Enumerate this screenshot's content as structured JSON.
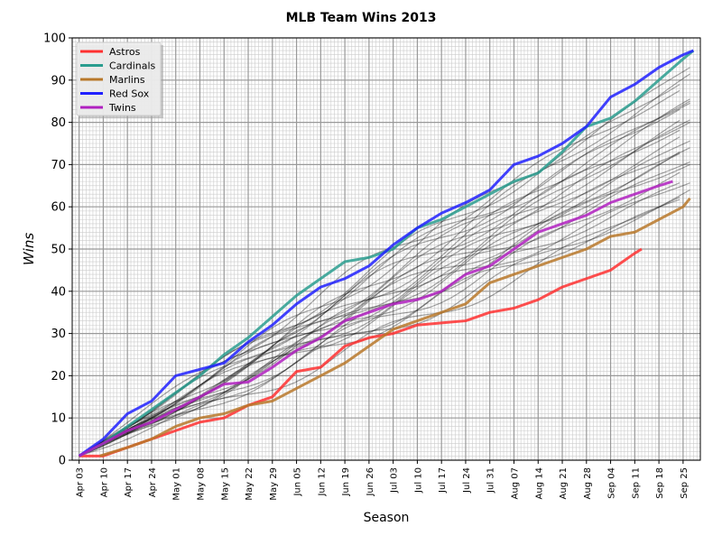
{
  "chart_data": {
    "type": "line",
    "title": "MLB Team Wins 2013",
    "xlabel": "Season",
    "ylabel": "Wins",
    "ylim": [
      0,
      100
    ],
    "xlim_days_from_apr03": [
      -2,
      180
    ],
    "x_tick_labels": [
      "Apr 03",
      "Apr 10",
      "Apr 17",
      "Apr 24",
      "May 01",
      "May 08",
      "May 15",
      "May 22",
      "May 29",
      "Jun 05",
      "Jun 12",
      "Jun 19",
      "Jun 26",
      "Jul 03",
      "Jul 10",
      "Jul 17",
      "Jul 24",
      "Jul 31",
      "Aug 07",
      "Aug 14",
      "Aug 21",
      "Aug 28",
      "Sep 04",
      "Sep 11",
      "Sep 18",
      "Sep 25"
    ],
    "y_ticks": [
      0,
      10,
      20,
      30,
      40,
      50,
      60,
      70,
      80,
      90,
      100
    ],
    "grid": true,
    "legend_position": "top-left",
    "series": [
      {
        "name": "Astros",
        "color": "#ff3030",
        "points": [
          [
            0,
            1
          ],
          [
            7,
            1
          ],
          [
            14,
            3
          ],
          [
            21,
            5
          ],
          [
            28,
            7
          ],
          [
            35,
            9
          ],
          [
            42,
            10
          ],
          [
            49,
            13
          ],
          [
            56,
            15
          ],
          [
            63,
            21
          ],
          [
            70,
            22
          ],
          [
            77,
            27
          ],
          [
            84,
            29
          ],
          [
            91,
            30
          ],
          [
            98,
            32
          ],
          [
            105,
            32.5
          ],
          [
            112,
            33
          ],
          [
            119,
            35
          ],
          [
            126,
            36
          ],
          [
            133,
            38
          ],
          [
            140,
            41
          ],
          [
            147,
            43
          ],
          [
            154,
            45
          ],
          [
            161,
            49
          ],
          [
            163,
            50
          ]
        ]
      },
      {
        "name": "Cardinals",
        "color": "#2a9d8f",
        "points": [
          [
            0,
            1
          ],
          [
            7,
            4
          ],
          [
            14,
            8
          ],
          [
            21,
            12
          ],
          [
            28,
            16
          ],
          [
            35,
            20
          ],
          [
            42,
            25
          ],
          [
            49,
            29
          ],
          [
            56,
            34
          ],
          [
            63,
            39
          ],
          [
            70,
            43
          ],
          [
            77,
            47
          ],
          [
            84,
            48
          ],
          [
            91,
            50
          ],
          [
            98,
            55
          ],
          [
            105,
            57
          ],
          [
            112,
            60
          ],
          [
            119,
            63
          ],
          [
            126,
            66
          ],
          [
            133,
            68
          ],
          [
            140,
            73
          ],
          [
            147,
            79
          ],
          [
            154,
            81
          ],
          [
            161,
            85
          ],
          [
            168,
            90
          ],
          [
            175,
            95
          ],
          [
            178,
            97
          ]
        ]
      },
      {
        "name": "Marlins",
        "color": "#b8782a",
        "points": [
          [
            6,
            1
          ],
          [
            14,
            3
          ],
          [
            21,
            5
          ],
          [
            28,
            8
          ],
          [
            35,
            10
          ],
          [
            42,
            11
          ],
          [
            49,
            13
          ],
          [
            56,
            14
          ],
          [
            63,
            17
          ],
          [
            70,
            20
          ],
          [
            77,
            23
          ],
          [
            84,
            27
          ],
          [
            91,
            31
          ],
          [
            98,
            33
          ],
          [
            105,
            35
          ],
          [
            112,
            37
          ],
          [
            119,
            42
          ],
          [
            126,
            44
          ],
          [
            133,
            46
          ],
          [
            140,
            48
          ],
          [
            147,
            50
          ],
          [
            154,
            53
          ],
          [
            161,
            54
          ],
          [
            168,
            57
          ],
          [
            175,
            60
          ],
          [
            177,
            62
          ]
        ]
      },
      {
        "name": "Red Sox",
        "color": "#2020ff",
        "points": [
          [
            0,
            1
          ],
          [
            7,
            5
          ],
          [
            14,
            11
          ],
          [
            21,
            14
          ],
          [
            28,
            20
          ],
          [
            35,
            21.5
          ],
          [
            42,
            23
          ],
          [
            49,
            28
          ],
          [
            56,
            32
          ],
          [
            63,
            37
          ],
          [
            70,
            41
          ],
          [
            77,
            43
          ],
          [
            84,
            46
          ],
          [
            91,
            51
          ],
          [
            98,
            55
          ],
          [
            105,
            58.5
          ],
          [
            112,
            61
          ],
          [
            119,
            64
          ],
          [
            126,
            70
          ],
          [
            133,
            72
          ],
          [
            140,
            75
          ],
          [
            147,
            79
          ],
          [
            154,
            86
          ],
          [
            161,
            89
          ],
          [
            168,
            93
          ],
          [
            175,
            96
          ],
          [
            178,
            97
          ]
        ]
      },
      {
        "name": "Twins",
        "color": "#b020c0",
        "points": [
          [
            0,
            1
          ],
          [
            7,
            4
          ],
          [
            14,
            7
          ],
          [
            21,
            9
          ],
          [
            28,
            12
          ],
          [
            35,
            15
          ],
          [
            42,
            18
          ],
          [
            49,
            18.5
          ],
          [
            56,
            22
          ],
          [
            63,
            26
          ],
          [
            70,
            29
          ],
          [
            77,
            33
          ],
          [
            84,
            35
          ],
          [
            91,
            37
          ],
          [
            98,
            38
          ],
          [
            105,
            40
          ],
          [
            112,
            44
          ],
          [
            119,
            46
          ],
          [
            126,
            50
          ],
          [
            133,
            54
          ],
          [
            140,
            56
          ],
          [
            147,
            58
          ],
          [
            154,
            61
          ],
          [
            161,
            63
          ],
          [
            168,
            65
          ],
          [
            172,
            66
          ]
        ]
      }
    ],
    "other_teams_final_wins": [
      92,
      93,
      90,
      88,
      86,
      85,
      84,
      81,
      81,
      80,
      79,
      77,
      76,
      74,
      74,
      73,
      71,
      70,
      69,
      66,
      66,
      64,
      63,
      62,
      85
    ]
  }
}
